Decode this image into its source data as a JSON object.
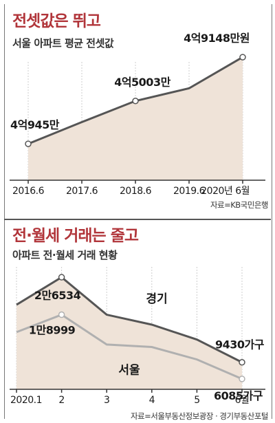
{
  "chart_data": [
    {
      "type": "area",
      "title": "전셋값은 뛰고",
      "subtitle": "서울 아파트 평균 전셋값",
      "categories": [
        "2016.6",
        "2017.6",
        "2018.6",
        "2019.6",
        "2020년 6월"
      ],
      "x": [
        0,
        1,
        2,
        3,
        4
      ],
      "series": [
        {
          "values": [
            40945,
            null,
            45003,
            null,
            49148
          ]
        }
      ],
      "estimated_line_values": [
        40945,
        43000,
        45003,
        46200,
        49148
      ],
      "point_labels": [
        "4억945만",
        "4억5003만",
        "4억9148만원"
      ],
      "labeled_points": [
        0,
        2,
        4
      ],
      "source": "자료=KB국민은행",
      "ylim": [
        37500,
        50000
      ],
      "colors": {
        "fill": "#efe3d8",
        "line": "#555555"
      }
    },
    {
      "type": "line",
      "title": "전·월세 거래는 줄고",
      "subtitle": "아파트 전·월세 거래 현황",
      "categories": [
        "2020.1",
        "2",
        "3",
        "4",
        "5",
        "6월"
      ],
      "series": [
        {
          "name": "경기",
          "values": [
            21000,
            26534,
            19000,
            17000,
            14000,
            9430
          ],
          "label_first": "2만6534",
          "label_last": "9430가구"
        },
        {
          "name": "서울",
          "values": [
            15500,
            18999,
            13000,
            12500,
            10000,
            6085
          ],
          "label_first": "1만8999",
          "label_last": "6085가구"
        }
      ],
      "source": "자료=서울부동산정보광장 · 경기부동산포털",
      "ylim": [
        4000,
        30000
      ],
      "colors": {
        "fill": "#efe3d8",
        "seoul_line": "#b0b0b0",
        "gyeonggi_line": "#555555"
      }
    }
  ]
}
